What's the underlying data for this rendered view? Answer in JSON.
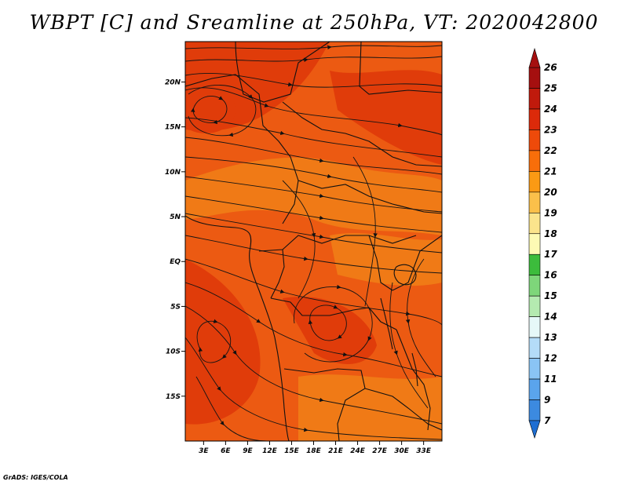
{
  "title": "WBPT [C] and Sreamline at 250hPa, VT: 2020042800",
  "credit": "GrADS: IGES/COLA",
  "map": {
    "lat_labels": [
      "20N",
      "15N",
      "10N",
      "5N",
      "EQ",
      "5S",
      "10S",
      "15S"
    ],
    "lat_values": [
      20,
      15,
      10,
      5,
      0,
      -5,
      -10,
      -15
    ],
    "lon_labels": [
      "3E",
      "6E",
      "9E",
      "12E",
      "15E",
      "18E",
      "21E",
      "24E",
      "27E",
      "30E",
      "33E"
    ],
    "lon_values": [
      3,
      6,
      9,
      12,
      15,
      18,
      21,
      24,
      27,
      30,
      33
    ],
    "lat_range": [
      -20,
      24.5
    ],
    "lon_range": [
      0.5,
      35.5
    ]
  },
  "colorbar": {
    "labels": [
      "26",
      "25",
      "24",
      "23",
      "22",
      "21",
      "20",
      "19",
      "18",
      "17",
      "16",
      "15",
      "14",
      "13",
      "12",
      "11",
      "9",
      "7"
    ],
    "colors": {
      "26": "#a50f0f",
      "25": "#c01a0c",
      "24": "#dc2a0a",
      "23": "#ee4a0a",
      "22": "#f86e0a",
      "21": "#fb9a14",
      "20": "#fbc04a",
      "19": "#fbe48c",
      "18": "#fdfab4",
      "17": "#3cbc3c",
      "16": "#7ed67a",
      "15": "#b4eab0",
      "14": "#e6f8f8",
      "13": "#b4dcf8",
      "12": "#8ac4f4",
      "11": "#5aa4ec",
      "9": "#3c8ae0",
      "7": "#1e6ed2"
    },
    "map_palette": {
      "dark": "#e03c0a",
      "mid": "#ec5a12",
      "light": "#f07a16"
    }
  }
}
